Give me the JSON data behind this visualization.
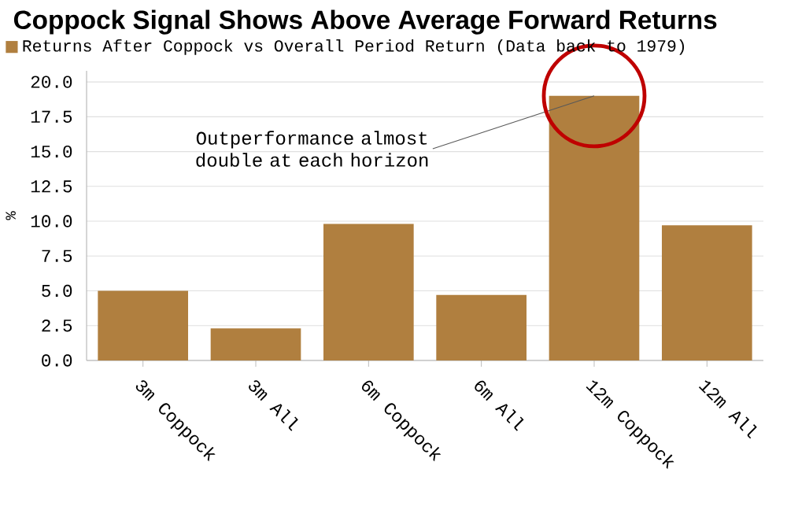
{
  "chart_data": {
    "type": "bar",
    "title": "Coppock Signal Shows Above Average Forward Returns",
    "categories": [
      "3m Coppock",
      "3m All",
      "6m Coppock",
      "6m All",
      "12m Coppock",
      "12m All"
    ],
    "series": [
      {
        "name": "Returns After Coppock vs Overall Period Return (Data back to 1979)",
        "color": "#b07f3f",
        "values": [
          5.0,
          2.3,
          9.8,
          4.7,
          19.0,
          9.7
        ]
      }
    ],
    "ylabel": "%",
    "ylim": [
      0,
      20.8
    ],
    "yticks": [
      {
        "value": 0,
        "label": "0.0"
      },
      {
        "value": 2.5,
        "label": "2.5"
      },
      {
        "value": 5,
        "label": "5.0"
      },
      {
        "value": 7.5,
        "label": "7.5"
      },
      {
        "value": 10,
        "label": "10.0"
      },
      {
        "value": 12.5,
        "label": "12.5"
      },
      {
        "value": 15,
        "label": "15.0"
      },
      {
        "value": 17.5,
        "label": "17.5"
      },
      {
        "value": 20,
        "label": "20.0"
      }
    ],
    "grid": "y",
    "legend": "top left",
    "annotations": [
      {
        "text": "Outperformance almost double at each horizon",
        "x": "12m Coppock",
        "y": 19.0
      }
    ]
  }
}
